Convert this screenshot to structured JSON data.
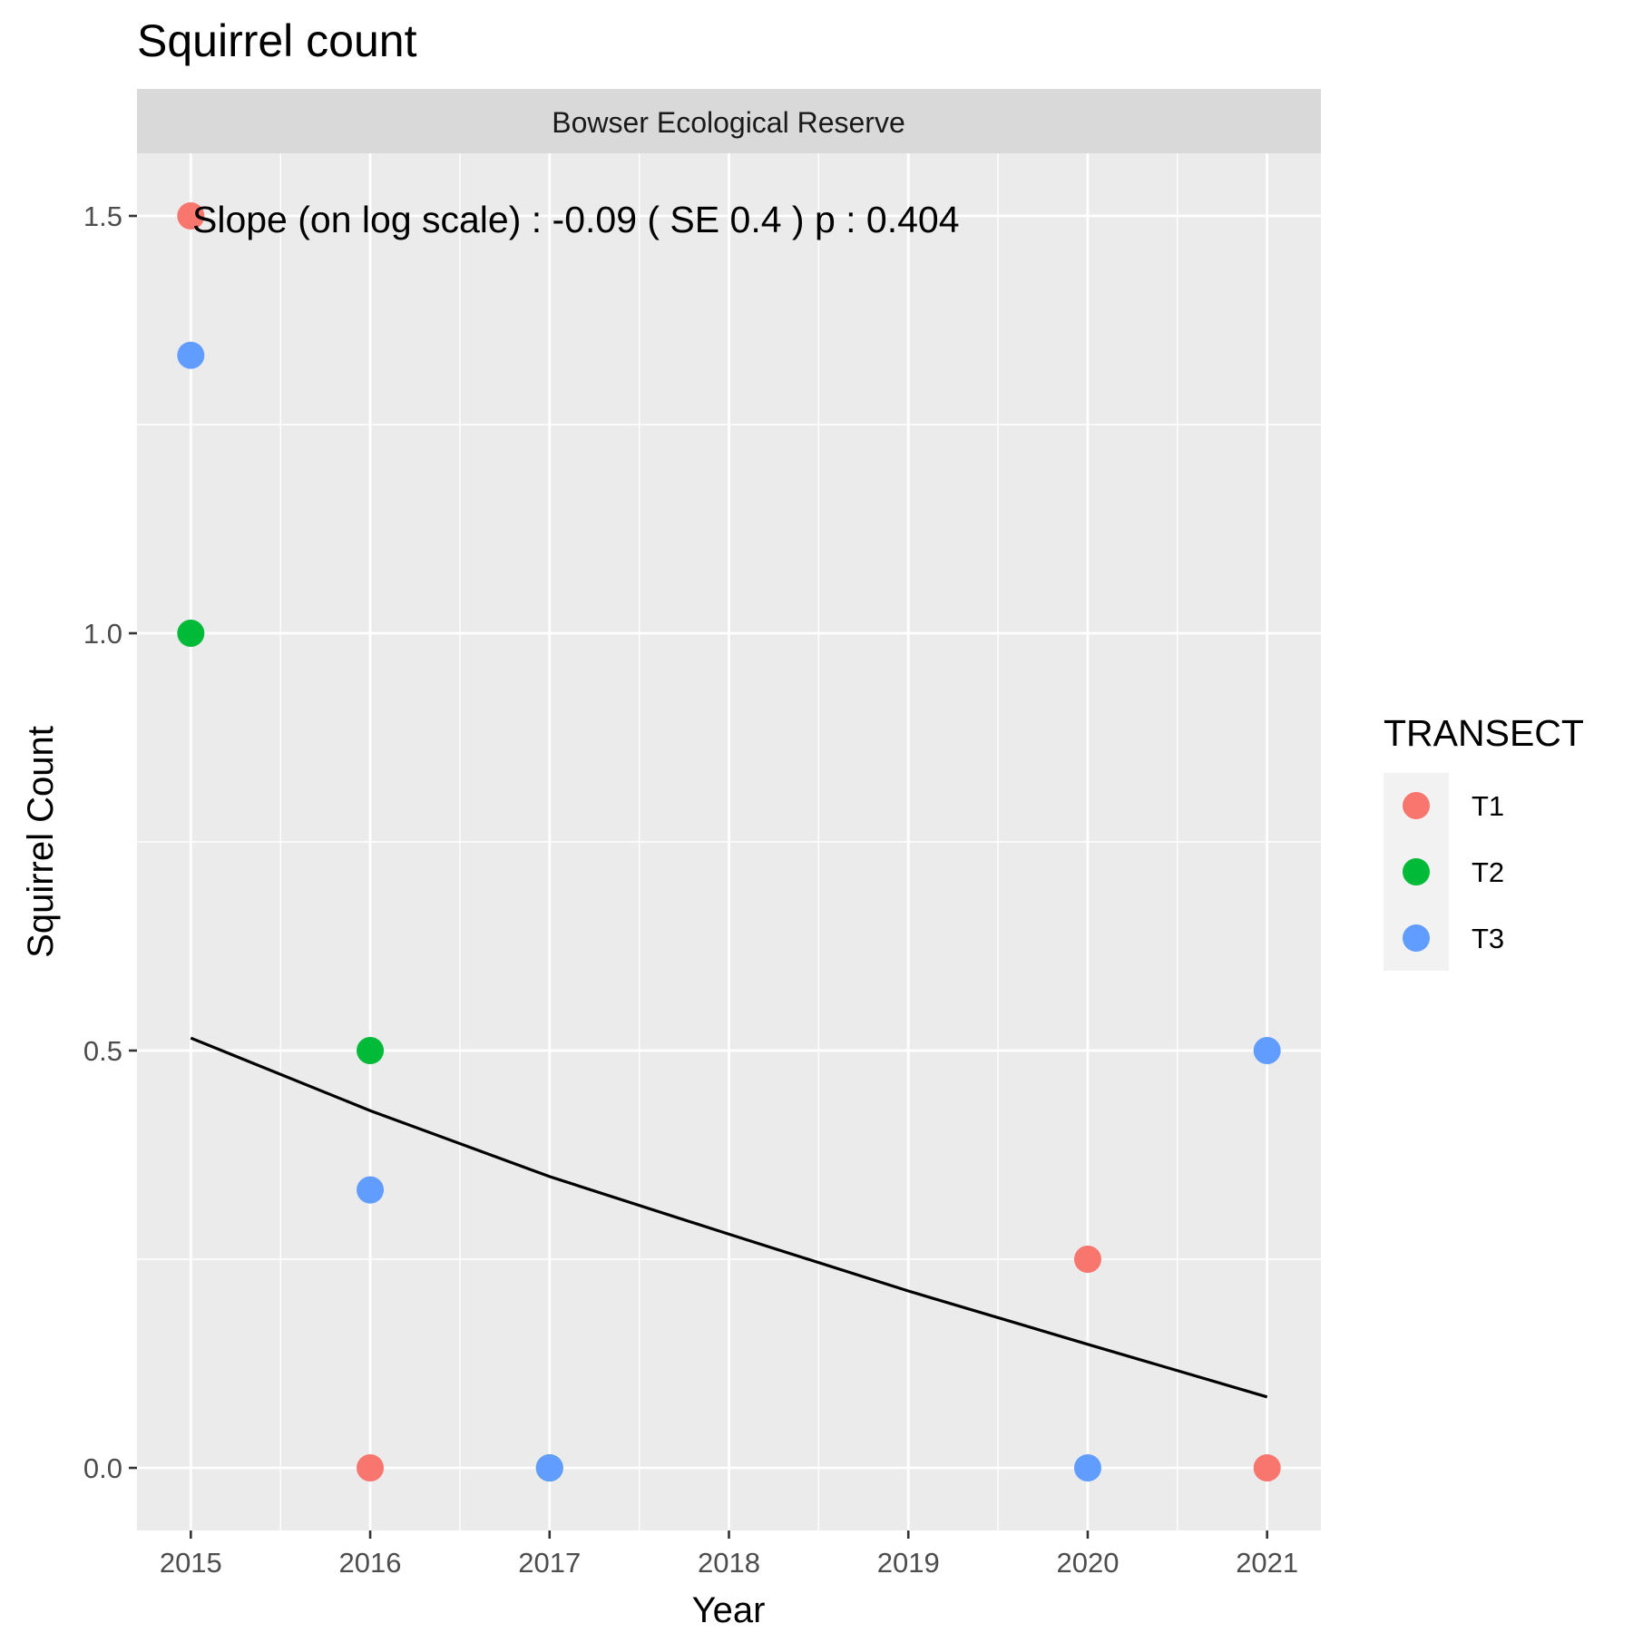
{
  "chart_data": {
    "type": "scatter",
    "title": "Squirrel count",
    "facet_label": "Bowser Ecological Reserve",
    "xlabel": "Year",
    "ylabel": "Squirrel Count",
    "x_ticks": [
      "2015",
      "2016",
      "2017",
      "2018",
      "2019",
      "2020",
      "2021"
    ],
    "y_ticks": [
      "0.0",
      "0.5",
      "1.0",
      "1.5"
    ],
    "xlim": [
      2014.7,
      2021.3
    ],
    "ylim": [
      -0.075,
      1.575
    ],
    "grid": true,
    "legend": {
      "title": "TRANSECT",
      "position": "right"
    },
    "annotation": "Slope (on log scale) :  -0.09  ( SE  0.4 )  p : 0.404",
    "series": [
      {
        "name": "T1",
        "color": "#F8766D",
        "points": [
          [
            2015,
            1.5
          ],
          [
            2016,
            0.0
          ],
          [
            2017,
            0.0
          ],
          [
            2020,
            0.25
          ],
          [
            2021,
            0.0
          ]
        ]
      },
      {
        "name": "T2",
        "color": "#00BA38",
        "points": [
          [
            2015,
            1.0
          ],
          [
            2016,
            0.5
          ],
          [
            2017,
            0.0
          ]
        ]
      },
      {
        "name": "T3",
        "color": "#619CFF",
        "points": [
          [
            2015,
            1.333
          ],
          [
            2016,
            0.333
          ],
          [
            2017,
            0.0
          ],
          [
            2020,
            0.0
          ],
          [
            2021,
            0.5
          ]
        ]
      }
    ],
    "trend_line": {
      "color": "#000000",
      "points": [
        [
          2015,
          0.515
        ],
        [
          2016,
          0.428
        ],
        [
          2017,
          0.349
        ],
        [
          2018,
          0.28
        ],
        [
          2019,
          0.212
        ],
        [
          2020,
          0.148
        ],
        [
          2021,
          0.085
        ]
      ]
    }
  }
}
